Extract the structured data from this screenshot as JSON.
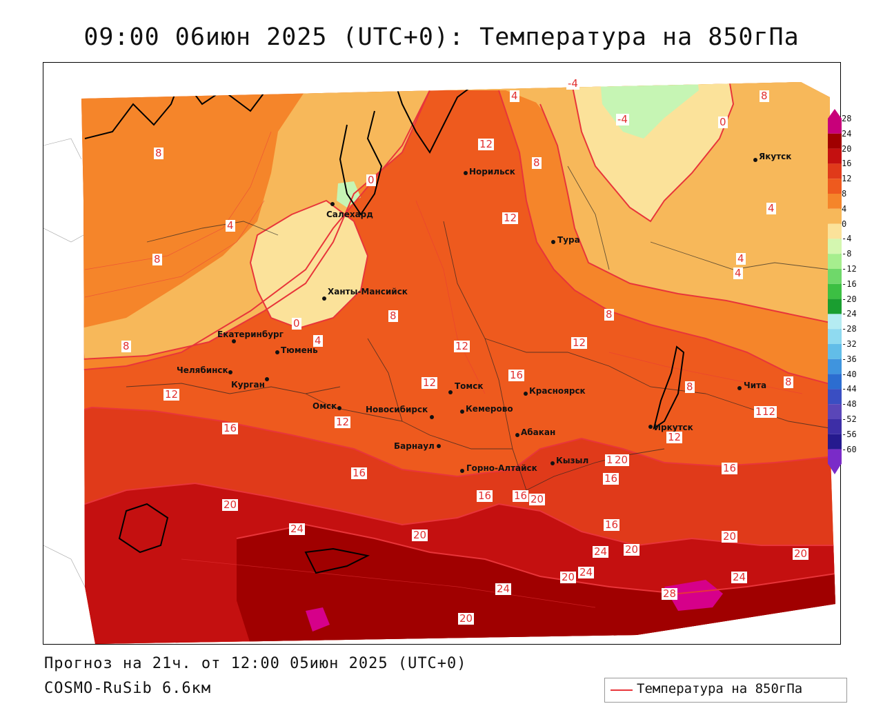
{
  "title": "09:00 06июн 2025 (UTC+0): Температура на 850гПа",
  "footer": {
    "forecast": "Прогноз на 21ч. от 12:00 05июн 2025 (UTC+0)",
    "model": "COSMO-RuSib 6.6км"
  },
  "legend": {
    "label": "Температура на 850гПа",
    "line_color": "#e8353a"
  },
  "colorbar": {
    "ticks": [
      "28",
      "24",
      "20",
      "16",
      "12",
      "8",
      "4",
      "0",
      "-4",
      "-8",
      "-12",
      "-16",
      "-20",
      "-24",
      "-28",
      "-32",
      "-36",
      "-40",
      "-44",
      "-48",
      "-52",
      "-56",
      "-60"
    ],
    "colors": [
      "#c8007a",
      "#a00000",
      "#c41010",
      "#e03a1a",
      "#ee5a1e",
      "#f5852a",
      "#f7b85a",
      "#fbe29a",
      "#d4f7b0",
      "#a6ee8e",
      "#6fd86a",
      "#3cbf43",
      "#1a9e30",
      "#b5ecf2",
      "#8fdaf0",
      "#62bde8",
      "#3f94de",
      "#2c6dd0",
      "#3a4ec2",
      "#5a46b8",
      "#3d2ea6",
      "#251a8e",
      "#7a2bc8"
    ]
  },
  "cities": [
    {
      "name": "Норильск"
    },
    {
      "name": "Якутск"
    },
    {
      "name": "Салехард"
    },
    {
      "name": "Тура"
    },
    {
      "name": "Ханты-Мансийск"
    },
    {
      "name": "Екатеринбург"
    },
    {
      "name": "Тюмень"
    },
    {
      "name": "Челябинск"
    },
    {
      "name": "Курган"
    },
    {
      "name": "Омск"
    },
    {
      "name": "Новосибирск"
    },
    {
      "name": "Томск"
    },
    {
      "name": "Кемерово"
    },
    {
      "name": "Красноярск"
    },
    {
      "name": "Абакан"
    },
    {
      "name": "Барнаул"
    },
    {
      "name": "Горно-Алтайск"
    },
    {
      "name": "Кызыл"
    },
    {
      "name": "Иркутск"
    },
    {
      "name": "Чита"
    }
  ],
  "contour_labels": [
    "4",
    "-4",
    "8",
    "12",
    "-4",
    "0",
    "8",
    "0",
    "4",
    "12",
    "8",
    "4",
    "8",
    "4",
    "4",
    "0",
    "8",
    "4",
    "8",
    "12",
    "8",
    "12",
    "8",
    "12",
    "12",
    "12",
    "16",
    "12",
    "8",
    "16",
    "12",
    "12",
    "16",
    "16",
    "20",
    "16",
    "16",
    "20",
    "16",
    "16",
    "20",
    "24",
    "20",
    "16",
    "20",
    "24",
    "20",
    "20",
    "24",
    "24",
    "24",
    "20",
    "20",
    "28"
  ],
  "colors": {
    "contour": "#e8353a"
  }
}
